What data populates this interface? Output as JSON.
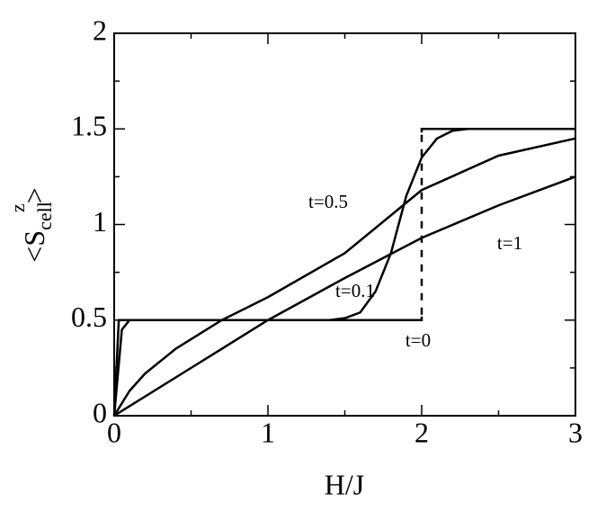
{
  "chart_data": {
    "type": "line",
    "xlabel": "H/J",
    "ylabel": {
      "main": "<S",
      "sub": "cell",
      "sup": "z",
      "end": ">"
    },
    "xlim": [
      0,
      3
    ],
    "xticks": [
      0,
      1,
      2,
      3
    ],
    "xminor": [
      0.5,
      1.5,
      2.5
    ],
    "ylim": [
      0,
      2
    ],
    "yticks": [
      0,
      0.5,
      1,
      1.5,
      2
    ],
    "yminor": [
      0.25,
      0.75,
      1.25,
      1.75
    ],
    "grid": false,
    "series": [
      {
        "name": "t=0",
        "color": "#000000",
        "x": [
          0,
          0.03,
          2,
          2,
          3
        ],
        "values": [
          0,
          0.5,
          0.5,
          1.5,
          1.5
        ]
      },
      {
        "name": "t=0.1",
        "color": "#000000",
        "x": [
          0,
          0.05,
          0.1,
          1.4,
          1.5,
          1.6,
          1.7,
          1.8,
          1.9,
          2.0,
          2.1,
          2.2,
          2.3,
          3
        ],
        "values": [
          0,
          0.45,
          0.5,
          0.5,
          0.51,
          0.54,
          0.65,
          0.85,
          1.15,
          1.35,
          1.45,
          1.49,
          1.5,
          1.5
        ]
      },
      {
        "name": "t=0.5",
        "color": "#000000",
        "x": [
          0,
          0.1,
          0.2,
          0.4,
          0.7,
          1,
          1.5,
          2,
          2.5,
          3
        ],
        "values": [
          0,
          0.13,
          0.22,
          0.35,
          0.5,
          0.62,
          0.85,
          1.18,
          1.36,
          1.45
        ]
      },
      {
        "name": "t=1",
        "color": "#000000",
        "x": [
          0,
          0.5,
          1,
          1.5,
          2,
          2.5,
          3
        ],
        "values": [
          0,
          0.25,
          0.5,
          0.72,
          0.93,
          1.1,
          1.25
        ]
      }
    ]
  }
}
